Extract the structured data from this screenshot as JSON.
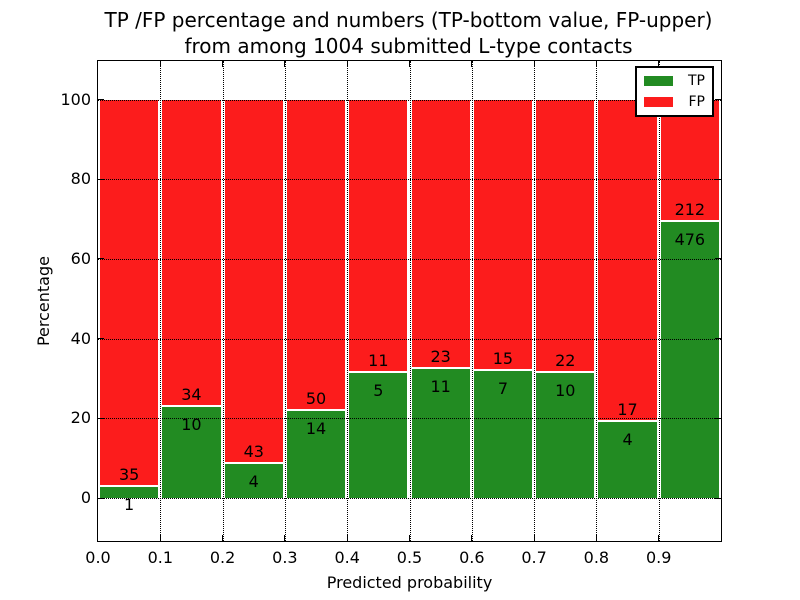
{
  "chart_data": {
    "type": "bar",
    "stacked": true,
    "orientation": "vertical",
    "title_lines": [
      "TP /FP percentage and numbers (TP-bottom value, FP-upper)",
      "from among 1004 submitted L-type contacts"
    ],
    "xlabel": "Predicted probability",
    "ylabel": "Percentage",
    "x_tick_labels": [
      "0.0",
      "0.1",
      "0.2",
      "0.3",
      "0.4",
      "0.5",
      "0.6",
      "0.7",
      "0.8",
      "0.9"
    ],
    "y_tick_labels": [
      "0",
      "20",
      "40",
      "60",
      "80",
      "100"
    ],
    "y_ticks": [
      0,
      20,
      40,
      60,
      80,
      100
    ],
    "y_axis_range": [
      0,
      100
    ],
    "x_axis_range": [
      0.0,
      1.0
    ],
    "bin_width": 0.1,
    "grid": "dotted",
    "legend_position": "upper right",
    "total_contacts": 1004,
    "series": [
      {
        "name": "TP",
        "color": "#228b22",
        "counts": [
          1,
          10,
          4,
          14,
          5,
          11,
          7,
          10,
          4,
          476
        ]
      },
      {
        "name": "FP",
        "color": "#fc1c1c",
        "counts": [
          35,
          34,
          43,
          50,
          11,
          23,
          15,
          22,
          17,
          212
        ]
      }
    ],
    "tp_percent_by_bin": [
      2.8,
      22.7,
      8.5,
      21.9,
      31.3,
      32.4,
      31.8,
      31.3,
      19.0,
      69.2
    ]
  }
}
